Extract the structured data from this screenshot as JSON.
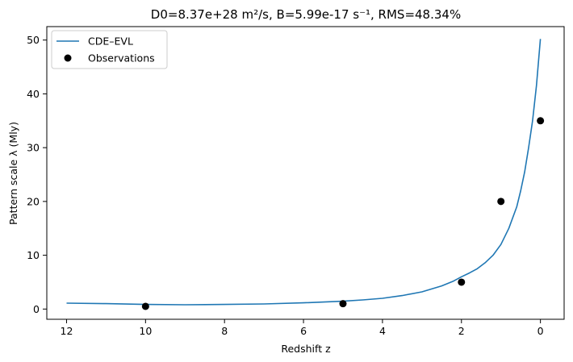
{
  "chart_data": {
    "type": "line",
    "title": "D0=8.37e+28 m²/s, B=5.99e-17 s⁻¹, RMS=48.34%",
    "xlabel": "Redshift z",
    "ylabel": "Pattern scale λ (Mly)",
    "xlim": [
      12.5,
      -0.6
    ],
    "ylim": [
      -1.9,
      52.5
    ],
    "x_axis_reversed": true,
    "xticks": [
      12,
      10,
      8,
      6,
      4,
      2,
      0
    ],
    "yticks": [
      0,
      10,
      20,
      30,
      40,
      50
    ],
    "grid": false,
    "legend_position": "top-left",
    "series": [
      {
        "name": "CDE–EVL",
        "kind": "line",
        "color": "#1f77b4",
        "x": [
          12,
          11,
          10,
          9,
          8,
          7,
          6,
          5,
          4.5,
          4,
          3.5,
          3,
          2.5,
          2.2,
          2,
          1.8,
          1.6,
          1.4,
          1.2,
          1.0,
          0.8,
          0.6,
          0.5,
          0.4,
          0.3,
          0.2,
          0.1,
          0
        ],
        "y": [
          1.1,
          1.0,
          0.85,
          0.8,
          0.85,
          0.95,
          1.15,
          1.45,
          1.7,
          2.0,
          2.5,
          3.2,
          4.3,
          5.2,
          6.0,
          6.7,
          7.5,
          8.6,
          10.0,
          12.0,
          15.0,
          19.0,
          22.0,
          25.5,
          30.0,
          35.0,
          41.5,
          50.2
        ]
      },
      {
        "name": "Observations",
        "kind": "scatter",
        "color": "#000000",
        "x": [
          10,
          5,
          2,
          1,
          0
        ],
        "y": [
          0.5,
          1.0,
          5.0,
          20.0,
          35.0
        ]
      }
    ]
  }
}
